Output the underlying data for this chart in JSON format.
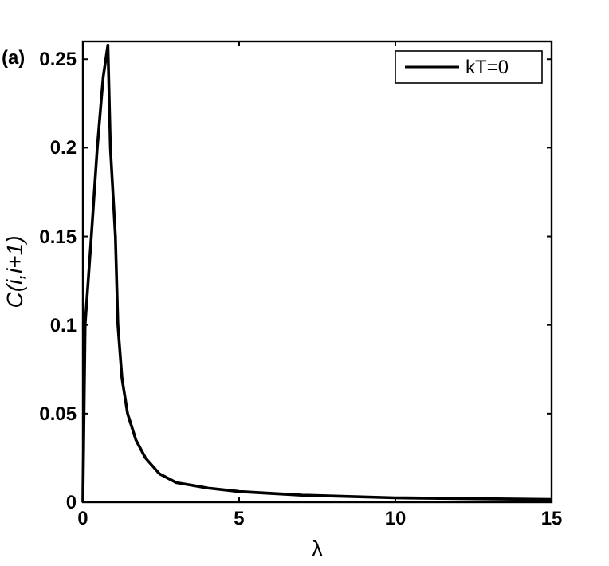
{
  "chart_data": {
    "type": "line",
    "xlabel": "λ",
    "ylabel": "C(i,i+1)",
    "annotations": [
      "(a)"
    ],
    "xlim": [
      0,
      15
    ],
    "ylim": [
      0,
      0.26
    ],
    "xticks": [
      0,
      5,
      10,
      15
    ],
    "yticks": [
      0,
      0.05,
      0.1,
      0.15,
      0.2,
      0.25
    ],
    "legend": "top right",
    "grid": false,
    "series": [
      {
        "name": "kT=0",
        "color": "#000000",
        "x": [
          0,
          0.07,
          0.27,
          0.46,
          0.65,
          0.8,
          0.88,
          1.04,
          1.12,
          1.25,
          1.43,
          1.7,
          2,
          2.45,
          3,
          4,
          5,
          7,
          10,
          15
        ],
        "values": [
          0,
          0.1,
          0.15,
          0.2,
          0.24,
          0.258,
          0.2,
          0.15,
          0.1,
          0.07,
          0.05,
          0.035,
          0.025,
          0.016,
          0.011,
          0.008,
          0.006,
          0.004,
          0.0025,
          0.0015
        ]
      }
    ]
  }
}
